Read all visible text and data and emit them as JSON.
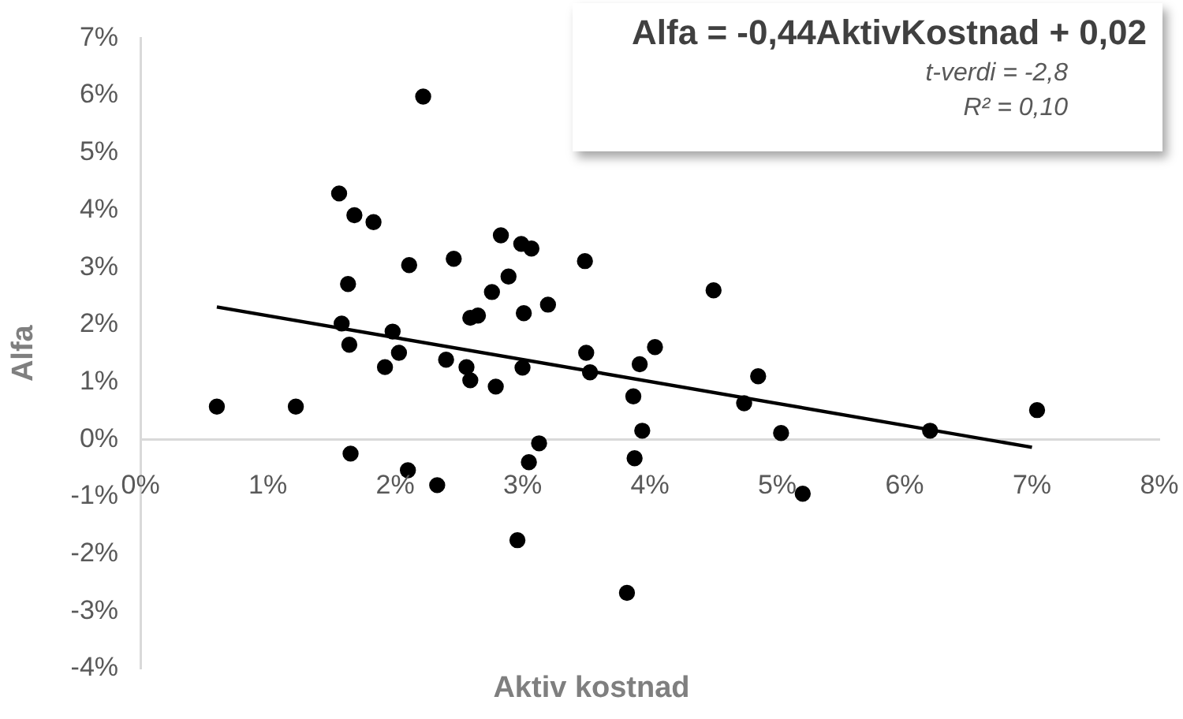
{
  "chart_data": {
    "type": "scatter",
    "xlabel": "Aktiv kostnad",
    "ylabel": "Alfa",
    "annotations": [
      "Alfa = -0,44AktivKostnad + 0,02",
      "t-verdi = -2,8",
      "R² = 0,10"
    ],
    "xlim": [
      0,
      8
    ],
    "ylim": [
      -4,
      7
    ],
    "xticks": [
      {
        "value": 0,
        "label": "0%"
      },
      {
        "value": 1,
        "label": "1%"
      },
      {
        "value": 2,
        "label": "2%"
      },
      {
        "value": 3,
        "label": "3%"
      },
      {
        "value": 4,
        "label": "4%"
      },
      {
        "value": 5,
        "label": "5%"
      },
      {
        "value": 6,
        "label": "6%"
      },
      {
        "value": 7,
        "label": "7%"
      },
      {
        "value": 8,
        "label": "8%"
      }
    ],
    "yticks": [
      {
        "value": -4,
        "label": "-4%"
      },
      {
        "value": -3,
        "label": "-3%"
      },
      {
        "value": -2,
        "label": "-2%"
      },
      {
        "value": -1,
        "label": "-1%"
      },
      {
        "value": 0,
        "label": "0%"
      },
      {
        "value": 1,
        "label": "1%"
      },
      {
        "value": 2,
        "label": "2%"
      },
      {
        "value": 3,
        "label": "3%"
      },
      {
        "value": 4,
        "label": "4%"
      },
      {
        "value": 5,
        "label": "5%"
      },
      {
        "value": 6,
        "label": "6%"
      },
      {
        "value": 7,
        "label": "7%"
      }
    ],
    "grid": false,
    "marker": "circle",
    "series": [
      {
        "type": "scatter",
        "color": "#000000",
        "x": [
          0.6,
          1.22,
          1.56,
          1.68,
          1.83,
          2.22,
          1.63,
          2.11,
          2.46,
          2.83,
          2.89,
          2.76,
          2.59,
          2.65,
          1.58,
          1.64,
          1.98,
          2.03,
          1.92,
          2.4,
          2.56,
          2.59,
          2.79,
          1.65,
          2.1,
          2.33,
          2.99,
          3.07,
          3.49,
          4.5,
          3.2,
          3.01,
          3.5,
          3.53,
          3.0,
          4.04,
          3.92,
          3.87,
          4.85,
          4.74,
          3.94,
          5.03,
          3.13,
          3.05,
          3.88,
          5.2,
          2.96,
          3.82,
          6.2,
          7.04
        ],
        "values": [
          0.57,
          0.57,
          4.29,
          3.91,
          3.79,
          5.98,
          2.71,
          3.04,
          3.15,
          3.56,
          2.84,
          2.57,
          2.12,
          2.16,
          2.02,
          1.65,
          1.88,
          1.51,
          1.26,
          1.39,
          1.26,
          1.03,
          0.92,
          -0.25,
          -0.54,
          -0.8,
          3.41,
          3.33,
          3.11,
          2.6,
          2.35,
          2.2,
          1.51,
          1.17,
          1.25,
          1.61,
          1.31,
          0.75,
          1.1,
          0.63,
          0.15,
          0.11,
          -0.07,
          -0.4,
          -0.33,
          -0.95,
          -1.76,
          -2.68,
          0.15,
          0.51
        ]
      },
      {
        "type": "line",
        "marker": "none",
        "color": "#000000",
        "x": [
          0.6,
          7.0
        ],
        "values": [
          2.31,
          -0.14
        ]
      }
    ]
  }
}
